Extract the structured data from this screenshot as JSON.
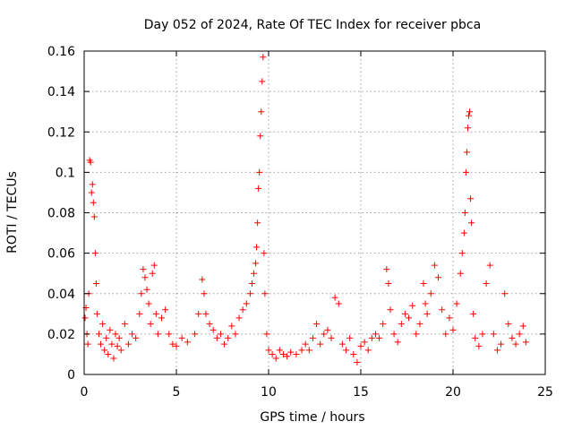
{
  "chart_data": {
    "type": "scatter",
    "title": "Day 052 of 2024, Rate Of TEC Index for receiver pbca",
    "xlabel": "GPS time / hours",
    "ylabel": "ROTI / TECUs",
    "xlim": [
      0,
      25
    ],
    "ylim": [
      0,
      0.16
    ],
    "xticks": [
      "0",
      "5",
      "10",
      "15",
      "20",
      "25"
    ],
    "yticks": [
      "0",
      "0.02",
      "0.04",
      "0.06",
      "0.08",
      "0.1",
      "0.12",
      "0.14",
      "0.16"
    ],
    "grid": true,
    "marker": "plus",
    "color": "#ff0000",
    "series": [
      {
        "name": "ROTI",
        "points": [
          [
            0.05,
            0.028
          ],
          [
            0.1,
            0.033
          ],
          [
            0.15,
            0.02
          ],
          [
            0.2,
            0.015
          ],
          [
            0.25,
            0.04
          ],
          [
            0.3,
            0.106
          ],
          [
            0.35,
            0.105
          ],
          [
            0.4,
            0.09
          ],
          [
            0.45,
            0.094
          ],
          [
            0.5,
            0.085
          ],
          [
            0.55,
            0.078
          ],
          [
            0.6,
            0.06
          ],
          [
            0.65,
            0.045
          ],
          [
            0.7,
            0.03
          ],
          [
            0.8,
            0.02
          ],
          [
            0.9,
            0.015
          ],
          [
            1.0,
            0.025
          ],
          [
            1.1,
            0.012
          ],
          [
            1.2,
            0.018
          ],
          [
            1.3,
            0.01
          ],
          [
            1.4,
            0.022
          ],
          [
            1.5,
            0.015
          ],
          [
            1.6,
            0.008
          ],
          [
            1.7,
            0.02
          ],
          [
            1.8,
            0.014
          ],
          [
            1.9,
            0.018
          ],
          [
            2.0,
            0.012
          ],
          [
            2.2,
            0.025
          ],
          [
            2.4,
            0.015
          ],
          [
            2.6,
            0.02
          ],
          [
            2.8,
            0.018
          ],
          [
            3.0,
            0.03
          ],
          [
            3.1,
            0.04
          ],
          [
            3.2,
            0.052
          ],
          [
            3.3,
            0.048
          ],
          [
            3.4,
            0.042
          ],
          [
            3.5,
            0.035
          ],
          [
            3.6,
            0.025
          ],
          [
            3.7,
            0.05
          ],
          [
            3.8,
            0.054
          ],
          [
            3.9,
            0.03
          ],
          [
            4.0,
            0.02
          ],
          [
            4.2,
            0.028
          ],
          [
            4.4,
            0.032
          ],
          [
            4.6,
            0.02
          ],
          [
            4.8,
            0.015
          ],
          [
            5.0,
            0.014
          ],
          [
            5.3,
            0.018
          ],
          [
            5.6,
            0.016
          ],
          [
            6.0,
            0.02
          ],
          [
            6.2,
            0.03
          ],
          [
            6.4,
            0.047
          ],
          [
            6.5,
            0.04
          ],
          [
            6.6,
            0.03
          ],
          [
            6.8,
            0.025
          ],
          [
            7.0,
            0.022
          ],
          [
            7.2,
            0.018
          ],
          [
            7.4,
            0.02
          ],
          [
            7.6,
            0.015
          ],
          [
            7.8,
            0.018
          ],
          [
            8.0,
            0.024
          ],
          [
            8.2,
            0.02
          ],
          [
            8.4,
            0.028
          ],
          [
            8.6,
            0.032
          ],
          [
            8.8,
            0.035
          ],
          [
            9.0,
            0.04
          ],
          [
            9.1,
            0.045
          ],
          [
            9.2,
            0.05
          ],
          [
            9.3,
            0.055
          ],
          [
            9.35,
            0.063
          ],
          [
            9.4,
            0.075
          ],
          [
            9.45,
            0.092
          ],
          [
            9.5,
            0.1
          ],
          [
            9.55,
            0.118
          ],
          [
            9.6,
            0.13
          ],
          [
            9.65,
            0.145
          ],
          [
            9.7,
            0.157
          ],
          [
            9.75,
            0.06
          ],
          [
            9.8,
            0.04
          ],
          [
            9.9,
            0.02
          ],
          [
            10.0,
            0.012
          ],
          [
            10.2,
            0.01
          ],
          [
            10.4,
            0.008
          ],
          [
            10.6,
            0.012
          ],
          [
            10.8,
            0.01
          ],
          [
            11.0,
            0.009
          ],
          [
            11.2,
            0.011
          ],
          [
            11.5,
            0.01
          ],
          [
            11.8,
            0.012
          ],
          [
            12.0,
            0.015
          ],
          [
            12.2,
            0.012
          ],
          [
            12.4,
            0.018
          ],
          [
            12.6,
            0.025
          ],
          [
            12.8,
            0.015
          ],
          [
            13.0,
            0.02
          ],
          [
            13.2,
            0.022
          ],
          [
            13.4,
            0.018
          ],
          [
            13.6,
            0.038
          ],
          [
            13.8,
            0.035
          ],
          [
            14.0,
            0.015
          ],
          [
            14.2,
            0.012
          ],
          [
            14.4,
            0.018
          ],
          [
            14.6,
            0.01
          ],
          [
            14.8,
            0.006
          ],
          [
            15.0,
            0.014
          ],
          [
            15.2,
            0.016
          ],
          [
            15.4,
            0.012
          ],
          [
            15.6,
            0.018
          ],
          [
            15.8,
            0.02
          ],
          [
            16.0,
            0.018
          ],
          [
            16.2,
            0.025
          ],
          [
            16.4,
            0.052
          ],
          [
            16.5,
            0.045
          ],
          [
            16.6,
            0.032
          ],
          [
            16.8,
            0.02
          ],
          [
            17.0,
            0.016
          ],
          [
            17.2,
            0.025
          ],
          [
            17.4,
            0.03
          ],
          [
            17.6,
            0.028
          ],
          [
            17.8,
            0.034
          ],
          [
            18.0,
            0.02
          ],
          [
            18.2,
            0.025
          ],
          [
            18.4,
            0.045
          ],
          [
            18.5,
            0.035
          ],
          [
            18.6,
            0.03
          ],
          [
            18.8,
            0.04
          ],
          [
            19.0,
            0.054
          ],
          [
            19.2,
            0.048
          ],
          [
            19.4,
            0.032
          ],
          [
            19.6,
            0.02
          ],
          [
            19.8,
            0.028
          ],
          [
            20.0,
            0.022
          ],
          [
            20.2,
            0.035
          ],
          [
            20.4,
            0.05
          ],
          [
            20.5,
            0.06
          ],
          [
            20.6,
            0.07
          ],
          [
            20.65,
            0.08
          ],
          [
            20.7,
            0.1
          ],
          [
            20.75,
            0.11
          ],
          [
            20.8,
            0.122
          ],
          [
            20.85,
            0.128
          ],
          [
            20.9,
            0.13
          ],
          [
            20.95,
            0.087
          ],
          [
            21.0,
            0.075
          ],
          [
            21.1,
            0.03
          ],
          [
            21.2,
            0.018
          ],
          [
            21.4,
            0.014
          ],
          [
            21.6,
            0.02
          ],
          [
            21.8,
            0.045
          ],
          [
            22.0,
            0.054
          ],
          [
            22.2,
            0.02
          ],
          [
            22.4,
            0.012
          ],
          [
            22.6,
            0.015
          ],
          [
            22.8,
            0.04
          ],
          [
            23.0,
            0.025
          ],
          [
            23.2,
            0.018
          ],
          [
            23.4,
            0.015
          ],
          [
            23.6,
            0.02
          ],
          [
            23.8,
            0.024
          ],
          [
            23.95,
            0.016
          ]
        ]
      }
    ]
  }
}
